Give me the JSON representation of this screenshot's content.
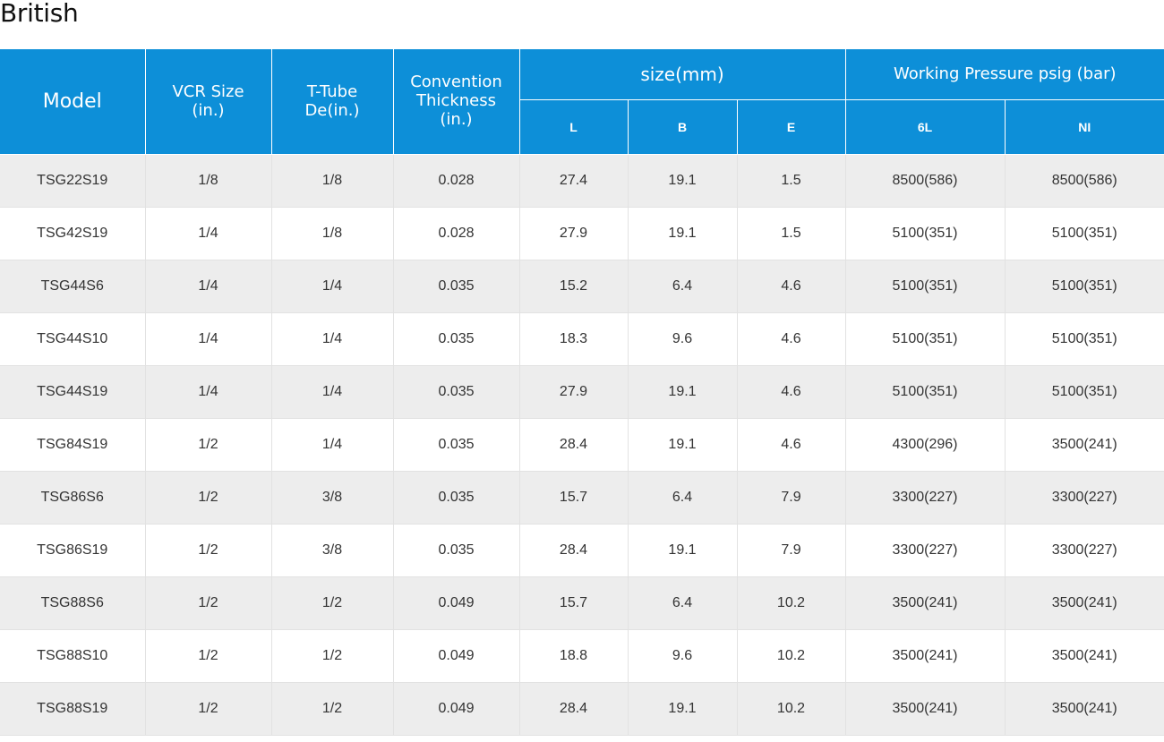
{
  "page": {
    "heading": "British"
  },
  "table": {
    "headers": {
      "model": "Model",
      "vcr_size": [
        "VCR Size",
        "(in.)"
      ],
      "t_tube": [
        "T-Tube",
        "De(in.)"
      ],
      "convention": [
        "Convention",
        "Thickness",
        "(in.)"
      ],
      "size_group": "size(mm)",
      "pressure_group": "Working Pressure psig (bar)",
      "size_cols": [
        "L",
        "B",
        "E"
      ],
      "pressure_cols": [
        "6L",
        "NI"
      ]
    },
    "rows": [
      [
        "TSG22S19",
        "1/8",
        "1/8",
        "0.028",
        "27.4",
        "19.1",
        "1.5",
        "8500(586)",
        "8500(586)"
      ],
      [
        "TSG42S19",
        "1/4",
        "1/8",
        "0.028",
        "27.9",
        "19.1",
        "1.5",
        "5100(351)",
        "5100(351)"
      ],
      [
        "TSG44S6",
        "1/4",
        "1/4",
        "0.035",
        "15.2",
        "6.4",
        "4.6",
        "5100(351)",
        "5100(351)"
      ],
      [
        "TSG44S10",
        "1/4",
        "1/4",
        "0.035",
        "18.3",
        "9.6",
        "4.6",
        "5100(351)",
        "5100(351)"
      ],
      [
        "TSG44S19",
        "1/4",
        "1/4",
        "0.035",
        "27.9",
        "19.1",
        "4.6",
        "5100(351)",
        "5100(351)"
      ],
      [
        "TSG84S19",
        "1/2",
        "1/4",
        "0.035",
        "28.4",
        "19.1",
        "4.6",
        "4300(296)",
        "3500(241)"
      ],
      [
        "TSG86S6",
        "1/2",
        "3/8",
        "0.035",
        "15.7",
        "6.4",
        "7.9",
        "3300(227)",
        "3300(227)"
      ],
      [
        "TSG86S19",
        "1/2",
        "3/8",
        "0.035",
        "28.4",
        "19.1",
        "7.9",
        "3300(227)",
        "3300(227)"
      ],
      [
        "TSG88S6",
        "1/2",
        "1/2",
        "0.049",
        "15.7",
        "6.4",
        "10.2",
        "3500(241)",
        "3500(241)"
      ],
      [
        "TSG88S10",
        "1/2",
        "1/2",
        "0.049",
        "18.8",
        "9.6",
        "10.2",
        "3500(241)",
        "3500(241)"
      ],
      [
        "TSG88S19",
        "1/2",
        "1/2",
        "0.049",
        "28.4",
        "19.1",
        "10.2",
        "3500(241)",
        "3500(241)"
      ]
    ]
  },
  "colors": {
    "header_bg": "#0d8fd8",
    "header_text": "#ffffff",
    "row_odd_bg": "#ededed",
    "row_even_bg": "#ffffff",
    "cell_text": "#333333"
  }
}
